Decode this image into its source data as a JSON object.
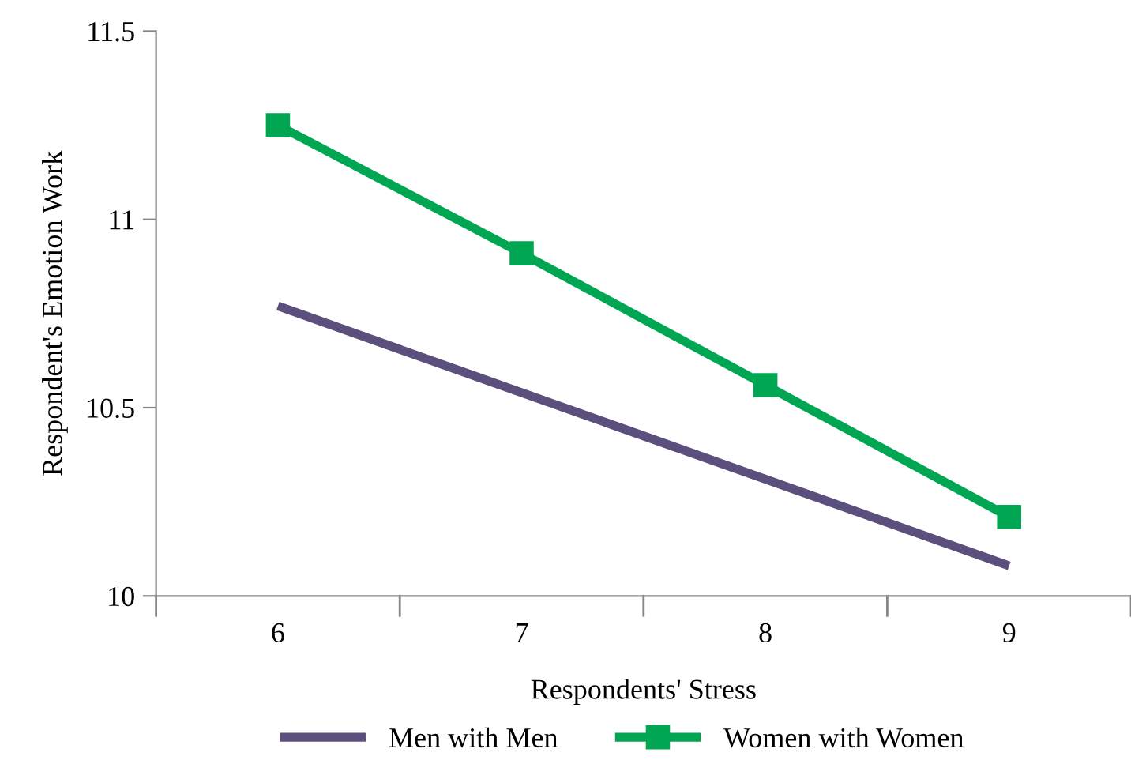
{
  "chart_data": {
    "type": "line",
    "xlabel": "Respondents' Stress",
    "ylabel": "Respondent's Emotion Work",
    "categories": [
      "6",
      "7",
      "8",
      "9"
    ],
    "series": [
      {
        "name": "Men with Men",
        "color": "#5a4f7d",
        "values": [
          10.77,
          10.54,
          10.31,
          10.08
        ],
        "marker": "none"
      },
      {
        "name": "Women with Women",
        "color": "#00a651",
        "values": [
          11.25,
          10.91,
          10.56,
          10.21
        ],
        "marker": "square"
      }
    ],
    "ylim": [
      10,
      11.5
    ],
    "yticks": [
      10,
      10.5,
      11,
      11.5
    ],
    "grid": false,
    "legend": "bottom",
    "line_style": "solid"
  }
}
